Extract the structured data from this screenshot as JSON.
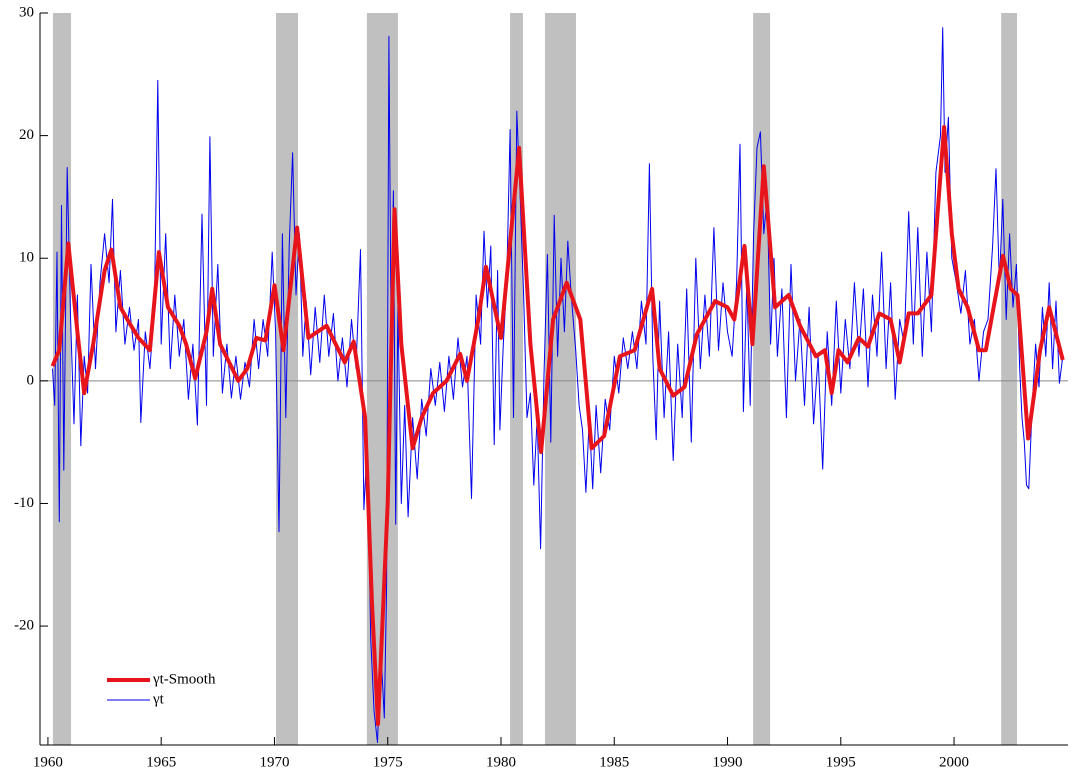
{
  "chart_data": {
    "type": "line",
    "xlim": [
      1959.65,
      2005.03
    ],
    "ylim": [
      -29.7,
      30
    ],
    "xticks": [
      1960,
      1965,
      1970,
      1975,
      1980,
      1985,
      1990,
      1995,
      2000
    ],
    "yticks": [
      30,
      20,
      10,
      0,
      -10,
      -20
    ],
    "legend": "lower left",
    "shading": [
      [
        1960.22,
        1961.02
      ],
      [
        1970.07,
        1971.04
      ],
      [
        1974.08,
        1975.45
      ],
      [
        1980.4,
        1980.97
      ],
      [
        1981.94,
        1983.31
      ],
      [
        1991.13,
        1991.88
      ],
      [
        2002.08,
        2002.78
      ]
    ],
    "shading_color": "#c0c0c0",
    "series": [
      {
        "name": "γt-Smooth",
        "color": "#e8141c",
        "width": 4,
        "x": [
          1960.2,
          1960.5,
          1960.9,
          1961.3,
          1961.6,
          1962.0,
          1962.5,
          1962.8,
          1963.2,
          1963.6,
          1964.0,
          1964.5,
          1964.9,
          1965.3,
          1965.8,
          1966.1,
          1966.5,
          1967.0,
          1967.25,
          1967.6,
          1968.0,
          1968.4,
          1968.8,
          1969.2,
          1969.6,
          1970.0,
          1970.4,
          1971.0,
          1971.5,
          1972.3,
          1973.1,
          1973.5,
          1974.0,
          1974.3,
          1974.57,
          1975.0,
          1975.3,
          1975.6,
          1976.1,
          1976.5,
          1977.0,
          1977.6,
          1978.2,
          1978.5,
          1979.0,
          1979.34,
          1980.0,
          1980.8,
          1981.3,
          1981.77,
          1982.3,
          1982.9,
          1983.5,
          1984.0,
          1984.55,
          1985.25,
          1985.9,
          1986.67,
          1987.0,
          1987.6,
          1988.1,
          1988.65,
          1989.45,
          1990.0,
          1990.3,
          1990.75,
          1991.1,
          1991.6,
          1992.1,
          1992.7,
          1993.2,
          1993.9,
          1994.3,
          1994.6,
          1994.9,
          1995.3,
          1995.8,
          1996.2,
          1996.7,
          1997.2,
          1997.6,
          1998.0,
          1998.4,
          1999.0,
          1999.56,
          1999.9,
          2000.2,
          2000.6,
          2001.1,
          2001.4,
          2002.16,
          2002.5,
          2002.8,
          2003.27,
          2003.8,
          2004.2,
          2004.8
        ],
        "values": [
          1.2,
          2.5,
          11.2,
          4,
          -1,
          3,
          9,
          10.7,
          6,
          4.7,
          3.5,
          2.5,
          10.5,
          6,
          4.5,
          3,
          0.2,
          4,
          7.5,
          3,
          1.5,
          0,
          1,
          3.5,
          3.3,
          7.8,
          2.5,
          12.5,
          3.5,
          4.5,
          1.5,
          3.2,
          -3,
          -18,
          -28,
          -10,
          14,
          3,
          -5.5,
          -3,
          -1,
          0,
          2.2,
          0,
          5,
          9.3,
          3.5,
          19,
          3,
          -5.8,
          5,
          8,
          5,
          -5.5,
          -4.5,
          2,
          2.5,
          7.5,
          1,
          -1.2,
          -0.5,
          3.8,
          6.5,
          6,
          5,
          11,
          3,
          17.5,
          6,
          7,
          4.5,
          2,
          2.5,
          -1,
          2.5,
          1.5,
          3.5,
          2.8,
          5.5,
          5,
          1.5,
          5.5,
          5.5,
          7,
          20.7,
          12,
          7.5,
          6,
          2.5,
          2.5,
          10.2,
          7.5,
          7,
          -4.7,
          2.5,
          6,
          1.7
        ]
      },
      {
        "name": "γt",
        "color": "#0000ee",
        "width": 1,
        "x": [
          1960.2,
          1960.3,
          1960.4,
          1960.5,
          1960.6,
          1960.7,
          1960.85,
          1961.0,
          1961.15,
          1961.3,
          1961.45,
          1961.6,
          1961.75,
          1961.9,
          1962.1,
          1962.3,
          1962.5,
          1962.7,
          1962.85,
          1963.0,
          1963.2,
          1963.4,
          1963.6,
          1963.8,
          1964.0,
          1964.1,
          1964.3,
          1964.5,
          1964.7,
          1964.85,
          1965.0,
          1965.2,
          1965.4,
          1965.6,
          1965.8,
          1966.0,
          1966.2,
          1966.4,
          1966.6,
          1966.8,
          1967.0,
          1967.15,
          1967.3,
          1967.5,
          1967.7,
          1967.9,
          1968.1,
          1968.3,
          1968.5,
          1968.7,
          1968.9,
          1969.1,
          1969.3,
          1969.5,
          1969.7,
          1969.9,
          1970.05,
          1970.2,
          1970.35,
          1970.5,
          1970.65,
          1970.8,
          1970.95,
          1971.1,
          1971.25,
          1971.4,
          1971.6,
          1971.8,
          1972.0,
          1972.2,
          1972.4,
          1972.6,
          1972.8,
          1973.0,
          1973.2,
          1973.4,
          1973.6,
          1973.8,
          1973.95,
          1974.1,
          1974.25,
          1974.4,
          1974.55,
          1974.7,
          1974.85,
          1974.95,
          1975.05,
          1975.15,
          1975.25,
          1975.35,
          1975.45,
          1975.6,
          1975.75,
          1975.9,
          1976.1,
          1976.3,
          1976.5,
          1976.7,
          1976.9,
          1977.1,
          1977.3,
          1977.5,
          1977.7,
          1977.9,
          1978.1,
          1978.3,
          1978.5,
          1978.7,
          1978.9,
          1979.1,
          1979.25,
          1979.4,
          1979.55,
          1979.7,
          1979.85,
          1979.95,
          1980.1,
          1980.25,
          1980.4,
          1980.55,
          1980.7,
          1980.85,
          1981.0,
          1981.15,
          1981.3,
          1981.45,
          1981.6,
          1981.75,
          1981.9,
          1982.05,
          1982.2,
          1982.35,
          1982.5,
          1982.65,
          1982.8,
          1982.95,
          1983.1,
          1983.3,
          1983.45,
          1983.6,
          1983.75,
          1983.9,
          1984.05,
          1984.2,
          1984.4,
          1984.6,
          1984.8,
          1985.0,
          1985.2,
          1985.4,
          1985.6,
          1985.8,
          1986.0,
          1986.2,
          1986.4,
          1986.55,
          1986.7,
          1986.85,
          1987.0,
          1987.2,
          1987.4,
          1987.6,
          1987.8,
          1988.0,
          1988.2,
          1988.4,
          1988.6,
          1988.8,
          1989.0,
          1989.2,
          1989.4,
          1989.6,
          1989.8,
          1990.0,
          1990.2,
          1990.4,
          1990.55,
          1990.7,
          1990.85,
          1991.0,
          1991.15,
          1991.3,
          1991.45,
          1991.6,
          1991.75,
          1991.9,
          1992.05,
          1992.2,
          1992.4,
          1992.6,
          1992.8,
          1993.0,
          1993.2,
          1993.4,
          1993.6,
          1993.8,
          1994.0,
          1994.2,
          1994.4,
          1994.6,
          1994.8,
          1995.0,
          1995.2,
          1995.4,
          1995.6,
          1995.8,
          1996.0,
          1996.2,
          1996.4,
          1996.6,
          1996.8,
          1997.0,
          1997.2,
          1997.4,
          1997.6,
          1997.8,
          1998.0,
          1998.2,
          1998.4,
          1998.6,
          1998.8,
          1999.0,
          1999.2,
          1999.4,
          1999.5,
          1999.6,
          1999.75,
          1999.9,
          2000.1,
          2000.3,
          2000.5,
          2000.7,
          2000.9,
          2001.1,
          2001.3,
          2001.5,
          2001.7,
          2001.85,
          2002.0,
          2002.15,
          2002.3,
          2002.45,
          2002.6,
          2002.75,
          2002.9,
          2003.0,
          2003.1,
          2003.2,
          2003.3,
          2003.45,
          2003.6,
          2003.75,
          2003.9,
          2004.05,
          2004.2,
          2004.35,
          2004.5,
          2004.65,
          2004.8
        ],
        "values": [
          1,
          -2,
          10.5,
          -11.5,
          14.3,
          -7.3,
          17.4,
          5,
          -3.5,
          7,
          -5.3,
          2,
          -1,
          9.5,
          1,
          8,
          12,
          8,
          14.8,
          4,
          9,
          3,
          6,
          2.5,
          5,
          -3.4,
          4,
          1,
          6,
          24.5,
          3,
          12,
          1,
          7,
          2,
          5,
          -1.5,
          3,
          -3.6,
          13.6,
          -2,
          19.9,
          2,
          9.5,
          -1,
          3,
          -1.4,
          2,
          -1.5,
          1.5,
          -0.5,
          5,
          1,
          5,
          2,
          10.5,
          4,
          -12.3,
          12,
          -3,
          11,
          18.6,
          7,
          12,
          2,
          6.5,
          0.5,
          6,
          1.5,
          7,
          2,
          5.5,
          0,
          3.5,
          -0.5,
          5,
          1,
          10.7,
          -10.5,
          -5,
          -21,
          -27,
          -29.5,
          -22,
          -27.5,
          -16.8,
          28.1,
          4,
          15.5,
          -11.7,
          6,
          -10,
          -2,
          -11.1,
          -3,
          -8,
          -1.5,
          -4.5,
          1,
          -2,
          1.5,
          -2.5,
          2,
          -1.5,
          3.5,
          -0.5,
          2,
          -9.6,
          7,
          3,
          12.2,
          6,
          11,
          -5.2,
          9,
          -4,
          3,
          8,
          20.5,
          -3,
          22,
          15,
          7,
          -3,
          -1,
          -8.5,
          -3,
          -13.7,
          0.5,
          10.3,
          -5,
          13.5,
          2,
          10,
          4,
          11.4,
          7,
          2.5,
          -2,
          -4,
          -9.1,
          -3,
          -8.8,
          -2,
          -7.5,
          -1.5,
          -4,
          2,
          -1,
          3.5,
          1,
          4,
          1,
          6.5,
          3,
          17.7,
          2,
          -4.8,
          6.5,
          -3,
          4,
          -6.5,
          3,
          -3,
          7.5,
          -5,
          10,
          1,
          7,
          2,
          12.5,
          2.5,
          8,
          4,
          2,
          8,
          19.3,
          -2.5,
          8,
          -2,
          12,
          19,
          20.3,
          12,
          15,
          3,
          10,
          2,
          7.5,
          -3,
          9.5,
          0,
          5,
          -2,
          6,
          -3.5,
          2,
          -7.2,
          4,
          -2,
          6.5,
          -1,
          5,
          1,
          8,
          2,
          7.5,
          -0.5,
          7,
          2,
          10.5,
          1,
          8,
          -1.5,
          5,
          3,
          13.8,
          3,
          12.5,
          2,
          10.5,
          4,
          17,
          20,
          28.8,
          17,
          21.5,
          10,
          8,
          5.5,
          9,
          3,
          5,
          0,
          4,
          5,
          11,
          17.3,
          8,
          14.8,
          5,
          12,
          6,
          9.5,
          1,
          -3,
          -5,
          -8.5,
          -8.8,
          -2,
          3,
          -0.5,
          6,
          2,
          8,
          1,
          6.5,
          -0.2,
          2
        ]
      }
    ]
  }
}
